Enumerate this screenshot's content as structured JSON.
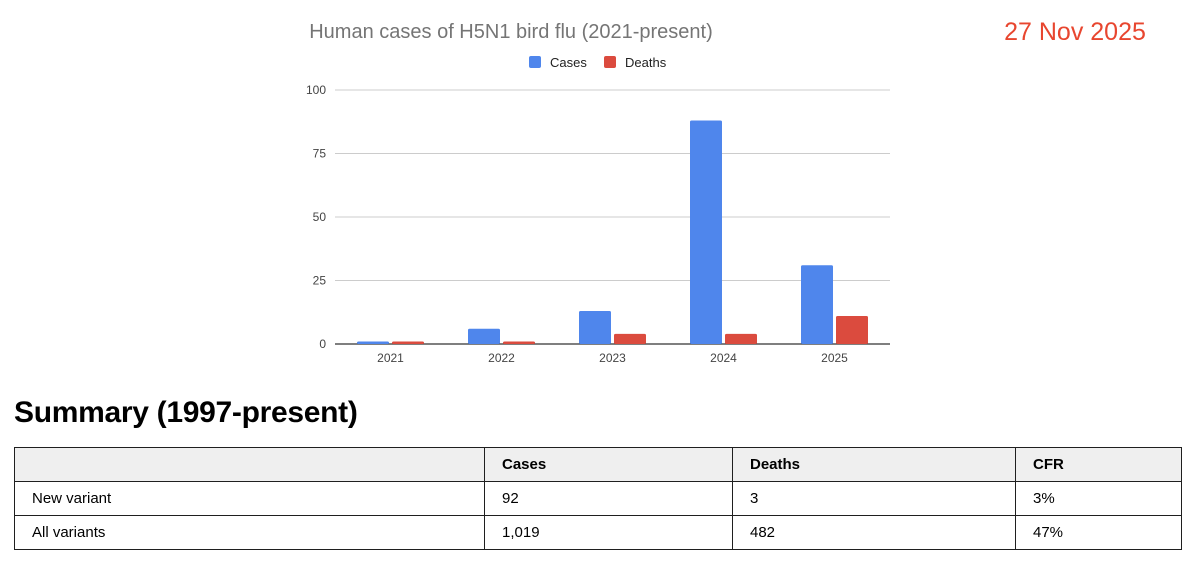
{
  "date": "27 Nov 2025",
  "colors": {
    "cases": "#4f86ec",
    "deaths": "#db4b3e",
    "date": "#e8462f",
    "grid": "#cccccc",
    "axis": "#333333"
  },
  "chart_data": {
    "type": "bar",
    "title": "Human cases of H5N1 bird flu (2021-present)",
    "categories": [
      "2021",
      "2022",
      "2023",
      "2024",
      "2025"
    ],
    "series": [
      {
        "name": "Cases",
        "values": [
          1,
          6,
          13,
          88,
          31
        ]
      },
      {
        "name": "Deaths",
        "values": [
          1,
          1,
          4,
          4,
          11
        ]
      }
    ],
    "xlabel": "",
    "ylabel": "",
    "ylim": [
      0,
      100
    ],
    "yticks": [
      0,
      25,
      50,
      75,
      100
    ],
    "grid": true,
    "legend": "top-center"
  },
  "summary": {
    "title": "Summary (1997-present)",
    "headers": [
      "",
      "Cases",
      "Deaths",
      "CFR"
    ],
    "rows": [
      [
        "New variant",
        "92",
        "3",
        "3%"
      ],
      [
        "All variants",
        "1,019",
        "482",
        "47%"
      ]
    ]
  }
}
